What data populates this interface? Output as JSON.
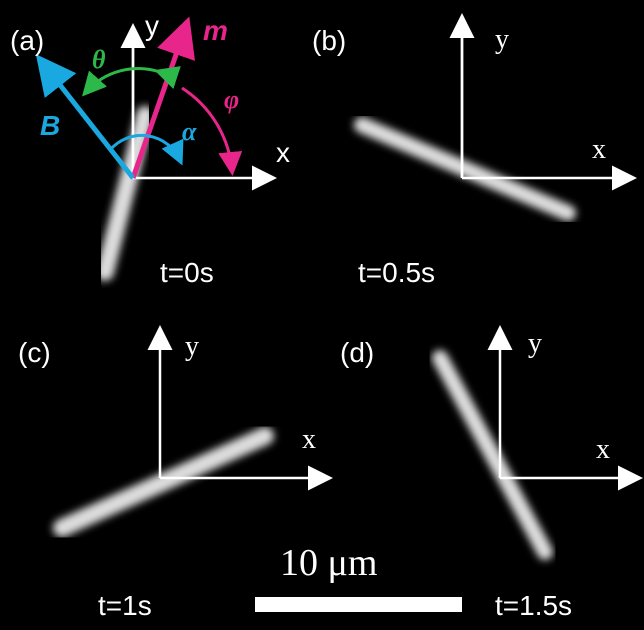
{
  "panels": [
    {
      "label": "(a)",
      "time": "t=0s",
      "x_axis": "x",
      "y_axis": "y"
    },
    {
      "label": "(b)",
      "time": "t=0.5s",
      "x_axis": "x",
      "y_axis": "y"
    },
    {
      "label": "(c)",
      "time": "t=1s",
      "x_axis": "x",
      "y_axis": "y"
    },
    {
      "label": "(d)",
      "time": "t=1.5s",
      "x_axis": "x",
      "y_axis": "y"
    }
  ],
  "annotations": {
    "m": "m",
    "B": "B",
    "theta": "θ",
    "phi": "φ",
    "alpha": "α"
  },
  "scale_bar": "10 μm"
}
